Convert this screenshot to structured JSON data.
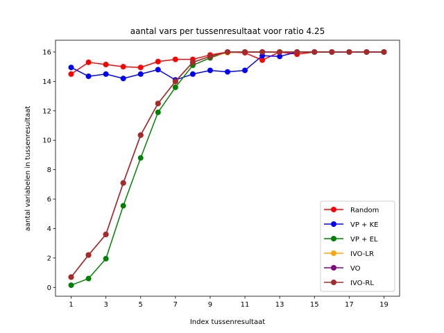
{
  "chart_data": {
    "type": "line",
    "title": "aantal vars per tussenresultaat voor ratio 4.25",
    "xlabel": "Index tussenresultaat",
    "ylabel": "aantal variabelen in tussenresultaat",
    "xlim": [
      0.1,
      19.9
    ],
    "ylim": [
      -0.6,
      16.8
    ],
    "xticks": [
      1,
      3,
      5,
      7,
      9,
      11,
      13,
      15,
      17,
      19
    ],
    "yticks": [
      0,
      2,
      4,
      6,
      8,
      10,
      12,
      14,
      16
    ],
    "grid": false,
    "legend_position": "lower right",
    "x": [
      1,
      2,
      3,
      4,
      5,
      6,
      7,
      8,
      9,
      10,
      11,
      12,
      13,
      14,
      15,
      16,
      17,
      18,
      19
    ],
    "series": [
      {
        "name": "Random",
        "color": "#ff0000",
        "values": [
          14.5,
          15.3,
          15.15,
          15.0,
          14.95,
          15.35,
          15.5,
          15.5,
          15.8,
          16.0,
          15.95,
          15.45,
          16.0,
          15.85,
          16.0,
          16.0,
          16.0,
          16.0,
          16.0
        ]
      },
      {
        "name": "VP + KE",
        "color": "#0000ff",
        "values": [
          14.95,
          14.35,
          14.5,
          14.2,
          14.5,
          14.8,
          14.1,
          14.5,
          14.75,
          14.65,
          14.75,
          15.75,
          15.7,
          16.0,
          16.0,
          16.0,
          16.0,
          16.0,
          16.0
        ]
      },
      {
        "name": "VP + EL",
        "color": "#008000",
        "values": [
          0.15,
          0.6,
          1.95,
          5.55,
          8.8,
          11.9,
          13.6,
          15.1,
          15.6,
          16.0,
          16.0,
          16.0,
          16.0,
          16.0,
          16.0,
          16.0,
          16.0,
          16.0,
          16.0
        ]
      },
      {
        "name": "IVO-LR",
        "color": "#ffa500",
        "values": [
          0.7,
          2.2,
          3.6,
          7.1,
          10.35,
          12.5,
          14.0,
          15.3,
          15.7,
          15.95,
          16.0,
          16.0,
          16.0,
          16.0,
          16.0,
          16.0,
          16.0,
          16.0,
          16.0
        ]
      },
      {
        "name": "VO",
        "color": "#800080",
        "values": [
          0.7,
          2.2,
          3.6,
          7.1,
          10.35,
          12.5,
          14.0,
          15.3,
          15.7,
          16.0,
          16.0,
          16.0,
          16.0,
          16.0,
          16.0,
          16.0,
          16.0,
          16.0,
          16.0
        ]
      },
      {
        "name": "IVO-RL",
        "color": "#a52a2a",
        "values": [
          0.7,
          2.2,
          3.6,
          7.1,
          10.35,
          12.5,
          14.0,
          15.3,
          15.7,
          16.0,
          16.0,
          16.0,
          16.0,
          16.0,
          16.0,
          16.0,
          16.0,
          16.0,
          16.0
        ]
      }
    ]
  }
}
